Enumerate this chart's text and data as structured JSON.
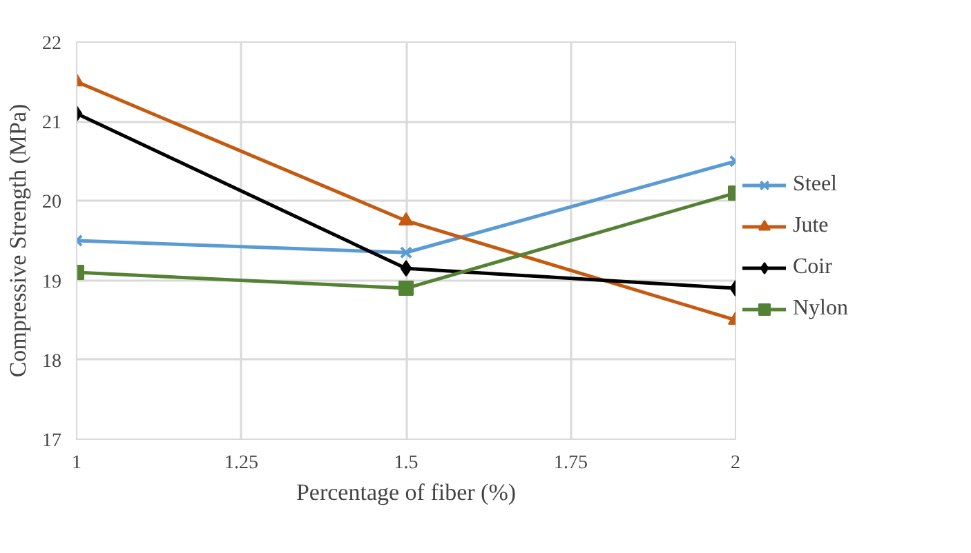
{
  "chart_data": {
    "type": "line",
    "xlabel": "Percentage of fiber (%)",
    "ylabel": "Compressive Strength (MPa)",
    "x": [
      1,
      1.5,
      2
    ],
    "xlim": [
      1,
      2
    ],
    "xticks": [
      1,
      1.25,
      1.5,
      1.75,
      2
    ],
    "ylim": [
      17,
      22
    ],
    "yticks": [
      17,
      18,
      19,
      20,
      21,
      22
    ],
    "grid": true,
    "legend": "right",
    "line_style": "solid",
    "series": [
      {
        "name": "Steel",
        "color": "#5b9bd5",
        "marker": "cross",
        "values": [
          19.5,
          19.35,
          20.5
        ]
      },
      {
        "name": "Jute",
        "color": "#c55a11",
        "marker": "triangle",
        "values": [
          21.5,
          19.75,
          18.5
        ]
      },
      {
        "name": "Coir",
        "color": "#000000",
        "marker": "diamond",
        "values": [
          21.1,
          19.15,
          18.9
        ]
      },
      {
        "name": "Nylon",
        "color": "#548235",
        "marker": "square",
        "values": [
          19.1,
          18.9,
          20.1
        ]
      }
    ]
  }
}
